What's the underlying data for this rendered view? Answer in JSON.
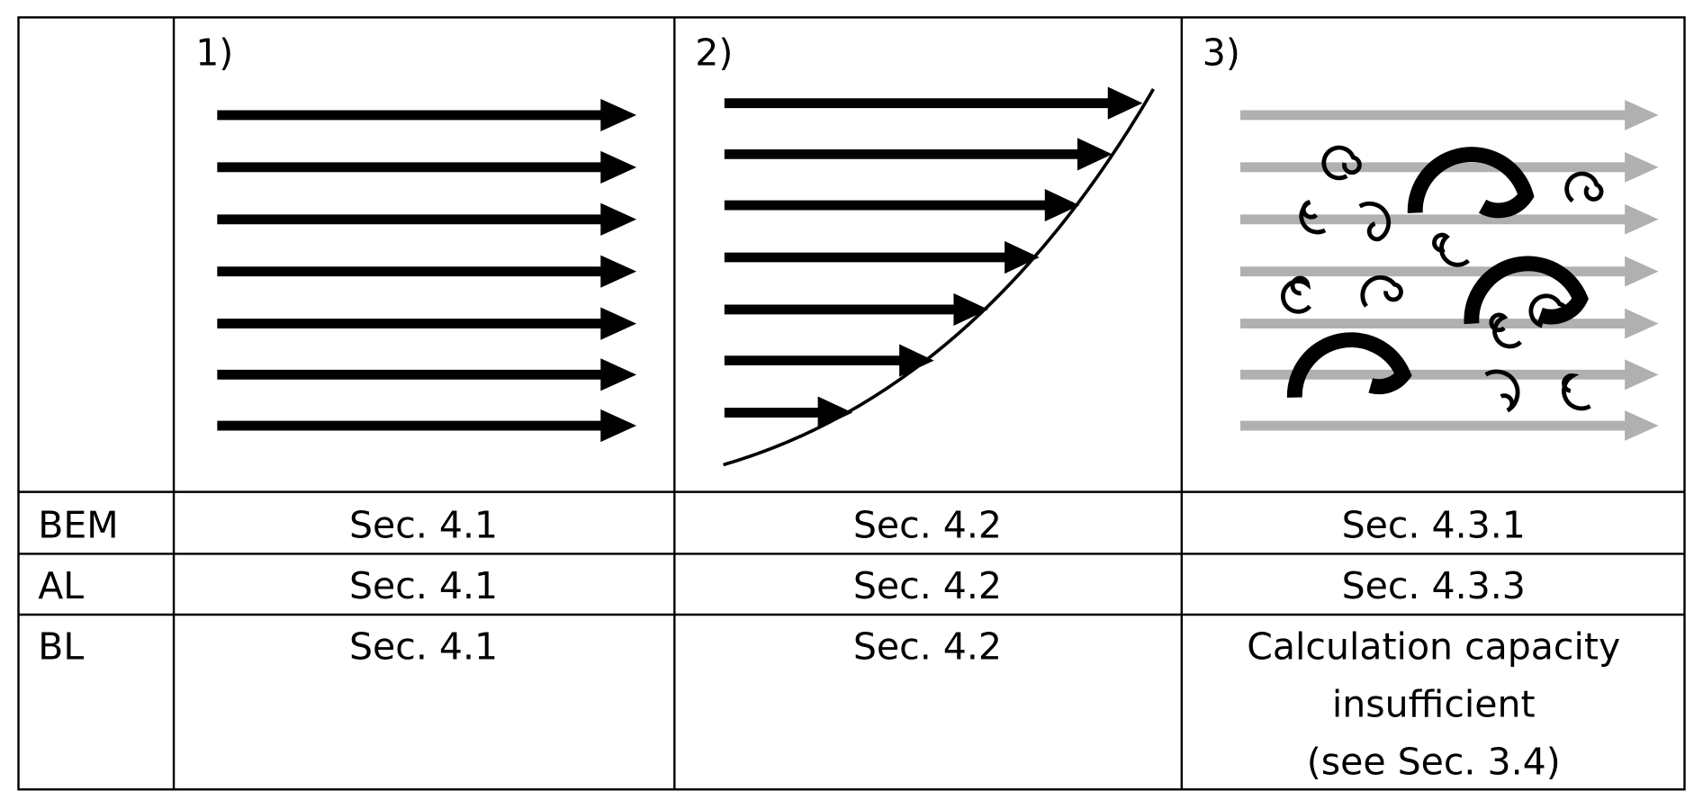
{
  "table": {
    "header": [
      "1)",
      "2)",
      "3)"
    ],
    "rows": [
      [
        "BEM",
        "Sec. 4.1",
        "Sec. 4.2",
        "Sec. 4.3.1"
      ],
      [
        "AL",
        "Sec. 4.1",
        "Sec. 4.2",
        "Sec. 4.3.3"
      ],
      [
        "BL",
        "Sec. 4.1",
        "Sec. 4.2",
        [
          "Calculation capacity",
          "insufficient",
          "(see Sec. 3.4)"
        ]
      ]
    ]
  }
}
